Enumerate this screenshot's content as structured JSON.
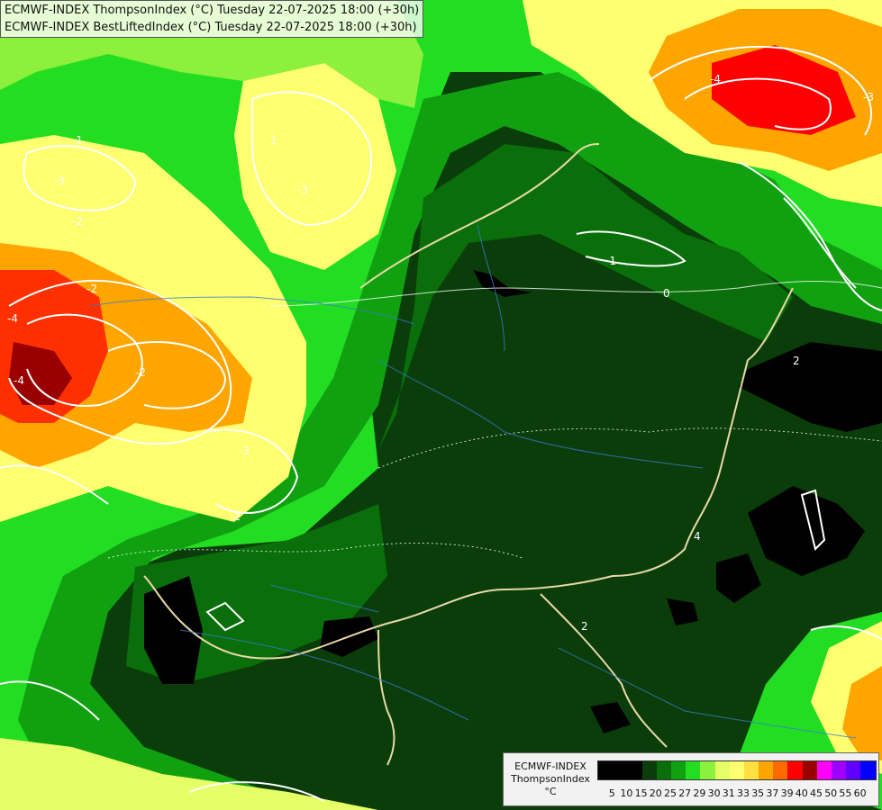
{
  "header": {
    "line1": "ECMWF-INDEX ThompsonIndex (°C) Tuesday 22-07-2025 18:00 (+30h)",
    "line2": "ECMWF-INDEX BestLiftedIndex (°C) Tuesday 22-07-2025 18:00 (+30h)"
  },
  "legend": {
    "title": "ECMWF-INDEX",
    "subtitle": "ThompsonIndex",
    "unit": "°C",
    "ticks": [
      "5",
      "10",
      "15",
      "20",
      "25",
      "27",
      "29",
      "30",
      "31",
      "33",
      "35",
      "37",
      "39",
      "40",
      "45",
      "50",
      "55",
      "60"
    ],
    "colors": [
      "#000000",
      "#000000",
      "#000000",
      "#0a3d0a",
      "#0a6e0a",
      "#10a010",
      "#22dd22",
      "#8cf03c",
      "#e6ff66",
      "#ffff70",
      "#ffe040",
      "#ffa500",
      "#ff6a00",
      "#ff0000",
      "#9b0000",
      "#ff00ff",
      "#a000ff",
      "#6000ff",
      "#0000ff"
    ]
  },
  "contour_labels": [
    "-3",
    "-4",
    "-2",
    "-2",
    "-3",
    "-1",
    "0",
    "2",
    "4",
    "2",
    "-4",
    "-3",
    "-2",
    "-1",
    "1",
    "-3",
    "-4",
    "-2"
  ],
  "colors": {
    "dark_green": "#0a3d0a",
    "green": "#0a6e0a",
    "mid_green": "#10a010",
    "bright_green": "#22dd22",
    "light_green": "#8cf03c",
    "yellow": "#ffff70",
    "orange": "#ffa500",
    "red": "#ff0000",
    "dark_red": "#9b0000",
    "black": "#000000"
  }
}
